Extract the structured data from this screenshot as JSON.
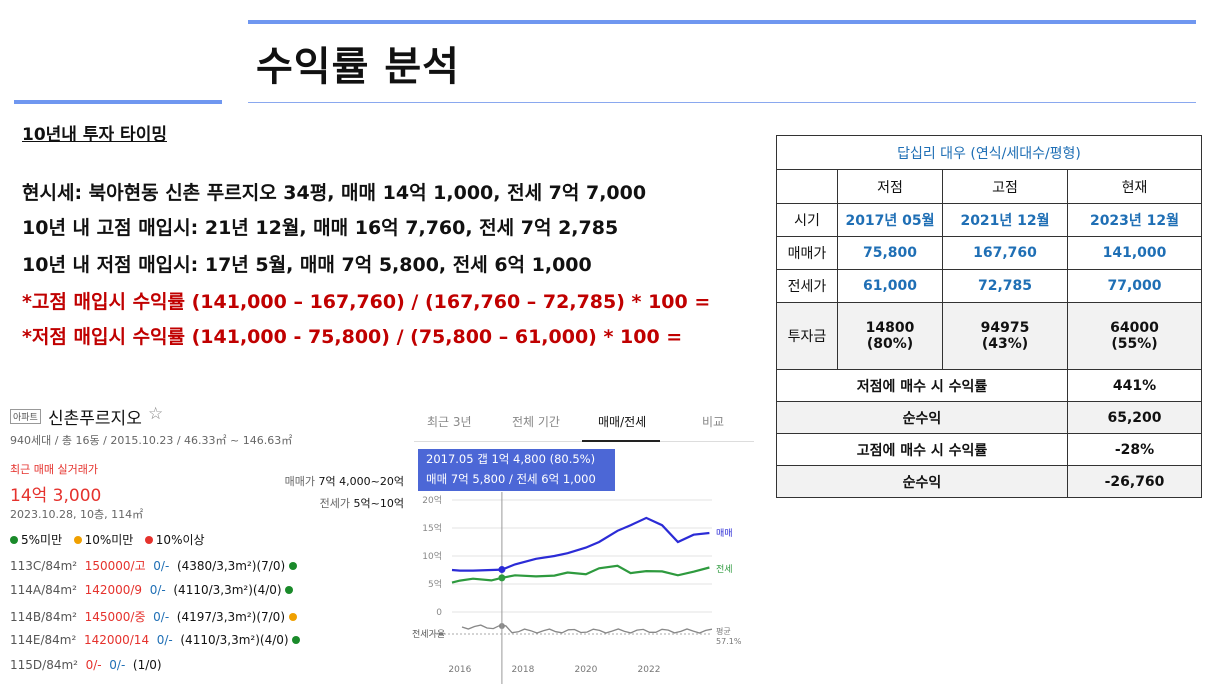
{
  "page": {
    "title": "수익률 분석",
    "subtitle": "10년내 투자 타이밍"
  },
  "lines": {
    "current": "현시세: 북아현동 신촌 푸르지오 34평, 매매 14억 1,000, 전세 7억 7,000",
    "high": "10년 내 고점 매입시: 21년 12월, 매매 16억 7,760, 전세 7억 2,785",
    "low": "10년 내 저점 매입시: 17년 5월, 매매 7억 5,800, 전세 6억 1,000",
    "high_formula": "*고점 매입시 수익률 (141,000 – 167,760) / (167,760 – 72,785) * 100 =",
    "low_formula": "*저점 매입시 수익률 (141,000 - 75,800) / (75,800 – 61,000) * 100 ="
  },
  "table": {
    "caption": "답십리 대우 (연식/세대수/평형)",
    "cols": [
      "저점",
      "고점",
      "현재"
    ],
    "rows": {
      "period": {
        "label": "시기",
        "values": [
          "2017년 05월",
          "2021년 12월",
          "2023년 12월"
        ]
      },
      "sale": {
        "label": "매매가",
        "values": [
          "75,800",
          "167,760",
          "141,000"
        ]
      },
      "jeonse": {
        "label": "전세가",
        "values": [
          "61,000",
          "72,785",
          "77,000"
        ]
      },
      "invest": {
        "label": "투자금",
        "values": [
          [
            "14800",
            "(80%)"
          ],
          [
            "94975",
            "(43%)"
          ],
          [
            "64000",
            "(55%)"
          ]
        ]
      }
    },
    "summary": [
      {
        "label": "저점에 매수 시 수익률",
        "value": "441%"
      },
      {
        "label": "순수익",
        "value": "65,200"
      },
      {
        "label": "고점에 매수 시 수익률",
        "value": "-28%"
      },
      {
        "label": "순수익",
        "value": "-26,760"
      }
    ]
  },
  "apt": {
    "tag": "아파트",
    "name": "신촌푸르지오",
    "star_icon": "star-outline-icon",
    "meta": "940세대 / 총 16동 / 2015.10.23 / 46.33㎡ ~ 146.63㎡",
    "recent_label": "최근 매매 실거래가",
    "recent_price": "14억 3,000",
    "recent_date": "2023.10.28, 10층, 114㎡",
    "legend": [
      {
        "label": "5%미만",
        "color": "#1a8a2a"
      },
      {
        "label": "10%미만",
        "color": "#f0a000"
      },
      {
        "label": "10%이상",
        "color": "#e5322d"
      }
    ],
    "units": [
      {
        "unit": "113C/84m²",
        "price": "150000/고",
        "blue": "0/-",
        "info": "(4380/3,3m²)(7/0)",
        "dot": "#1a8a2a"
      },
      {
        "unit": "114A/84m²",
        "price": "142000/9",
        "blue": "0/-",
        "info": "(4110/3,3m²)(4/0)",
        "dot": "#1a8a2a"
      },
      {
        "unit": "114B/84m²",
        "price": "145000/중",
        "blue": "0/-",
        "info": "(4197/3,3m²)(7/0)",
        "dot": "#f0a000"
      },
      {
        "unit": "114E/84m²",
        "price": "142000/14",
        "blue": "0/-",
        "info": "(4110/3,3m²)(4/0)",
        "dot": "#1a8a2a"
      },
      {
        "unit": "115D/84m²",
        "price": "0/-",
        "blue": "0/-",
        "info": "(1/0)",
        "dot": ""
      }
    ],
    "sale_range_label": "매매가",
    "sale_range": "7억 4,000~20억",
    "jeonse_range_label": "전세가",
    "jeonse_range": "5억~10억"
  },
  "tabs": [
    "최근 3년",
    "전체 기간",
    "매매/전세",
    "비교"
  ],
  "tooltip": {
    "line1": "2017.05  갭 1억 4,800 (80.5%)",
    "line2": "매매 7억 5,800 / 전세 6억 1,000"
  },
  "chart_data": {
    "type": "line",
    "x": [
      "2015.10",
      "2016.01",
      "2016.06",
      "2017.01",
      "2017.05",
      "2017.10",
      "2018.06",
      "2019.01",
      "2019.06",
      "2020.01",
      "2020.06",
      "2021.01",
      "2021.06",
      "2021.12",
      "2022.06",
      "2022.12",
      "2023.06",
      "2023.12"
    ],
    "series": [
      {
        "name": "매매",
        "values": [
          7.5,
          7.4,
          7.4,
          7.5,
          7.58,
          8.5,
          9.5,
          10.0,
          10.5,
          11.5,
          12.5,
          14.5,
          15.5,
          16.8,
          15.5,
          12.5,
          13.8,
          14.1
        ]
      },
      {
        "name": "전세",
        "values": [
          5.5,
          5.6,
          5.7,
          5.9,
          6.1,
          6.3,
          6.6,
          6.5,
          6.8,
          7.0,
          7.8,
          8.0,
          7.2,
          7.3,
          7.0,
          6.8,
          7.2,
          7.7
        ]
      }
    ],
    "yticks": [
      "20억",
      "15억",
      "10억",
      "5억",
      "0"
    ],
    "xticks": [
      "2016",
      "2018",
      "2020",
      "2022"
    ],
    "ylim": [
      0,
      20
    ],
    "ratio_label": "전세가율",
    "avg_label": "평균",
    "avg_value": "57.1%",
    "colors": {
      "sale": "#2b2bd6",
      "jeonse": "#2e9a3e",
      "ratio": "#888888"
    }
  }
}
